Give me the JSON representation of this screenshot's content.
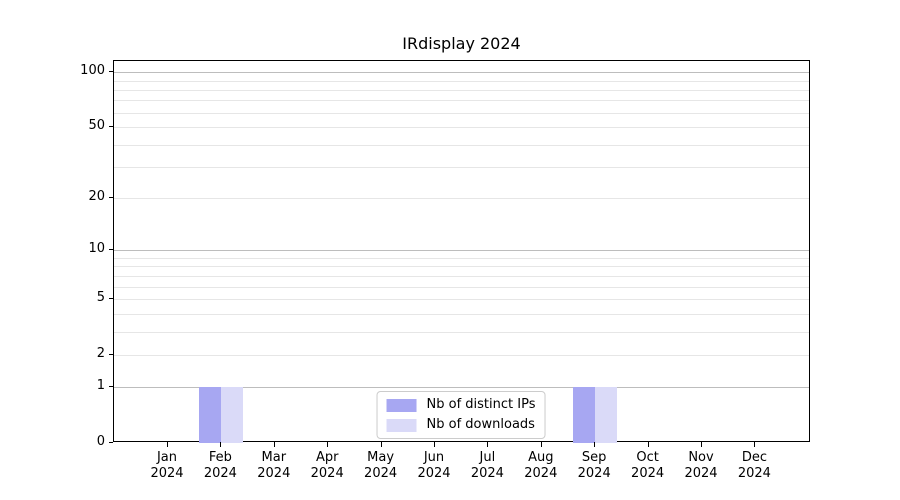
{
  "chart_data": {
    "type": "bar",
    "title": "IRdisplay 2024",
    "categories": [
      {
        "month": "Jan",
        "year": "2024"
      },
      {
        "month": "Feb",
        "year": "2024"
      },
      {
        "month": "Mar",
        "year": "2024"
      },
      {
        "month": "Apr",
        "year": "2024"
      },
      {
        "month": "May",
        "year": "2024"
      },
      {
        "month": "Jun",
        "year": "2024"
      },
      {
        "month": "Jul",
        "year": "2024"
      },
      {
        "month": "Aug",
        "year": "2024"
      },
      {
        "month": "Sep",
        "year": "2024"
      },
      {
        "month": "Oct",
        "year": "2024"
      },
      {
        "month": "Nov",
        "year": "2024"
      },
      {
        "month": "Dec",
        "year": "2024"
      }
    ],
    "series": [
      {
        "name": "Nb of distinct IPs",
        "color": "#a7a7f2",
        "values": [
          0,
          1,
          0,
          0,
          0,
          0,
          0,
          0,
          1,
          0,
          0,
          0
        ]
      },
      {
        "name": "Nb of downloads",
        "color": "#dadaf8",
        "values": [
          0,
          1,
          0,
          0,
          0,
          0,
          0,
          0,
          1,
          0,
          0,
          0
        ]
      }
    ],
    "xlabel": "",
    "ylabel": "",
    "yscale": "log1p",
    "yticks": [
      0,
      1,
      2,
      5,
      10,
      20,
      50,
      100
    ],
    "ylim": [
      0,
      115
    ],
    "grid_major": [
      1,
      10,
      100
    ],
    "grid_minor": [
      2,
      3,
      4,
      5,
      6,
      7,
      8,
      9,
      20,
      30,
      40,
      50,
      60,
      70,
      80,
      90
    ],
    "legend_position": "lower center",
    "colors": {
      "grid_major": "#bdbdbd",
      "grid_minor": "#e6e6e6",
      "spine": "#000000",
      "text": "#000000",
      "background": "#ffffff"
    }
  }
}
